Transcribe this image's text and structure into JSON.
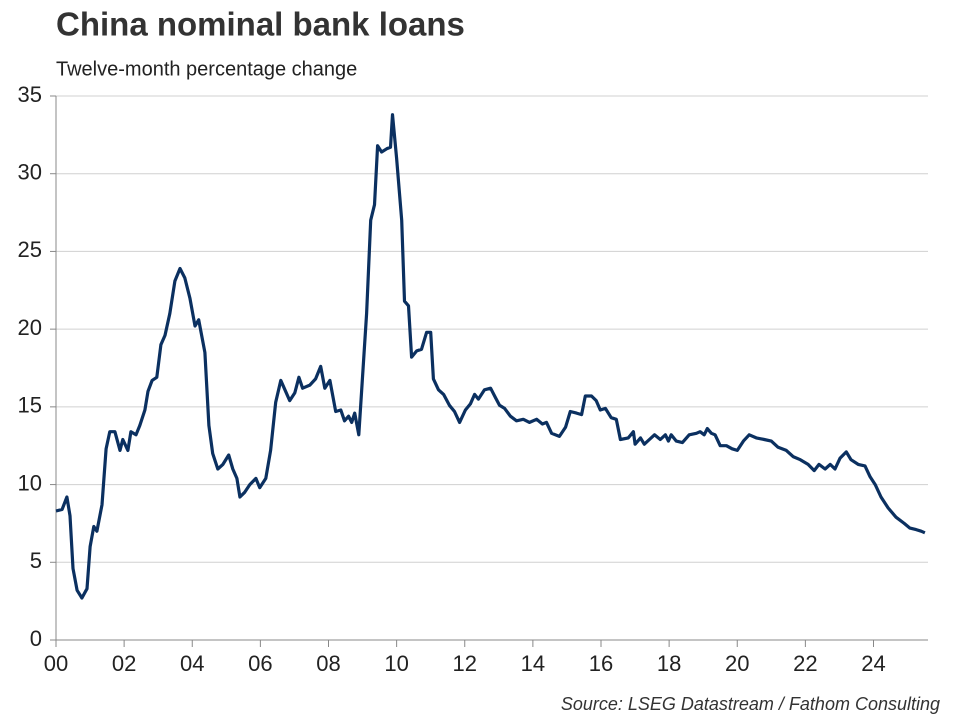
{
  "chart_data": {
    "type": "line",
    "title": "China nominal bank loans",
    "subtitle": "Twelve-month percentage change",
    "source": "Source: LSEG Datastream / Fathom Consulting",
    "color": "#0b3060",
    "grid": true,
    "xlim": [
      2000,
      2025.6
    ],
    "xticks": [
      {
        "value": 2000,
        "label": "00"
      },
      {
        "value": 2002,
        "label": "02"
      },
      {
        "value": 2004,
        "label": "04"
      },
      {
        "value": 2006,
        "label": "06"
      },
      {
        "value": 2008,
        "label": "08"
      },
      {
        "value": 2010,
        "label": "10"
      },
      {
        "value": 2012,
        "label": "12"
      },
      {
        "value": 2014,
        "label": "14"
      },
      {
        "value": 2016,
        "label": "16"
      },
      {
        "value": 2018,
        "label": "18"
      },
      {
        "value": 2020,
        "label": "20"
      },
      {
        "value": 2022,
        "label": "22"
      },
      {
        "value": 2024,
        "label": "24"
      }
    ],
    "ylim": [
      0,
      35
    ],
    "yticks": [
      0,
      5,
      10,
      15,
      20,
      25,
      30,
      35
    ],
    "x": [
      2000.0,
      2000.18,
      2000.32,
      2000.41,
      2000.5,
      2000.62,
      2000.76,
      2000.91,
      2001.0,
      2001.11,
      2001.2,
      2001.35,
      2001.47,
      2001.58,
      2001.73,
      2001.88,
      2001.96,
      2002.11,
      2002.2,
      2002.35,
      2002.46,
      2002.61,
      2002.7,
      2002.82,
      2002.96,
      2003.08,
      2003.2,
      2003.34,
      2003.49,
      2003.64,
      2003.78,
      2003.93,
      2004.08,
      2004.19,
      2004.37,
      2004.49,
      2004.6,
      2004.75,
      2004.9,
      2005.07,
      2005.19,
      2005.31,
      2005.4,
      2005.54,
      2005.69,
      2005.87,
      2005.98,
      2006.16,
      2006.3,
      2006.45,
      2006.6,
      2006.74,
      2006.86,
      2007.01,
      2007.13,
      2007.24,
      2007.45,
      2007.62,
      2007.77,
      2007.89,
      2008.04,
      2008.21,
      2008.36,
      2008.47,
      2008.59,
      2008.68,
      2008.77,
      2008.89,
      2009.0,
      2009.12,
      2009.24,
      2009.35,
      2009.44,
      2009.56,
      2009.71,
      2009.82,
      2009.88,
      2010.0,
      2010.15,
      2010.23,
      2010.35,
      2010.44,
      2010.59,
      2010.73,
      2010.88,
      2011.0,
      2011.08,
      2011.23,
      2011.38,
      2011.55,
      2011.7,
      2011.85,
      2012.02,
      2012.17,
      2012.29,
      2012.4,
      2012.58,
      2012.76,
      2012.9,
      2013.02,
      2013.17,
      2013.34,
      2013.52,
      2013.72,
      2013.9,
      2014.11,
      2014.28,
      2014.4,
      2014.55,
      2014.78,
      2014.96,
      2015.1,
      2015.28,
      2015.43,
      2015.54,
      2015.72,
      2015.86,
      2015.98,
      2016.13,
      2016.3,
      2016.45,
      2016.57,
      2016.8,
      2016.95,
      2017.0,
      2017.16,
      2017.27,
      2017.42,
      2017.57,
      2017.74,
      2017.89,
      2017.98,
      2018.06,
      2018.21,
      2018.39,
      2018.59,
      2018.8,
      2018.91,
      2019.03,
      2019.12,
      2019.24,
      2019.35,
      2019.5,
      2019.68,
      2019.85,
      2020.0,
      2020.18,
      2020.35,
      2020.56,
      2020.79,
      2021.0,
      2021.2,
      2021.44,
      2021.64,
      2021.85,
      2022.08,
      2022.26,
      2022.4,
      2022.58,
      2022.73,
      2022.87,
      2023.02,
      2023.2,
      2023.34,
      2023.55,
      2023.75,
      2023.9,
      2024.05,
      2024.22,
      2024.43,
      2024.66,
      2024.9,
      2025.07,
      2025.25,
      2025.4,
      2025.51
    ],
    "values": [
      8.3,
      8.4,
      9.2,
      8.0,
      4.6,
      3.2,
      2.7,
      3.3,
      6.0,
      7.3,
      7.0,
      8.7,
      12.3,
      13.4,
      13.4,
      12.2,
      12.9,
      12.2,
      13.4,
      13.2,
      13.8,
      14.8,
      16.0,
      16.7,
      16.9,
      19.0,
      19.6,
      21.0,
      23.1,
      23.9,
      23.3,
      22.0,
      20.2,
      20.6,
      18.5,
      13.8,
      12.0,
      11.0,
      11.3,
      11.9,
      11.0,
      10.4,
      9.2,
      9.5,
      10.0,
      10.4,
      9.8,
      10.4,
      12.2,
      15.3,
      16.7,
      16.0,
      15.4,
      15.9,
      16.9,
      16.2,
      16.4,
      16.8,
      17.6,
      16.2,
      16.7,
      14.7,
      14.8,
      14.1,
      14.4,
      14.0,
      14.6,
      13.2,
      17.0,
      21.0,
      27.0,
      28.0,
      31.8,
      31.4,
      31.6,
      31.7,
      33.8,
      31.0,
      27.0,
      21.8,
      21.5,
      18.2,
      18.6,
      18.7,
      19.8,
      19.8,
      16.8,
      16.1,
      15.8,
      15.1,
      14.7,
      14.0,
      14.8,
      15.2,
      15.8,
      15.5,
      16.1,
      16.2,
      15.6,
      15.1,
      14.9,
      14.4,
      14.1,
      14.2,
      14.0,
      14.2,
      13.9,
      14.0,
      13.3,
      13.1,
      13.7,
      14.7,
      14.6,
      14.5,
      15.7,
      15.7,
      15.4,
      14.8,
      14.9,
      14.3,
      14.2,
      12.9,
      13.0,
      13.4,
      12.6,
      13.0,
      12.6,
      12.9,
      13.2,
      12.9,
      13.2,
      12.8,
      13.2,
      12.8,
      12.7,
      13.2,
      13.3,
      13.4,
      13.2,
      13.6,
      13.3,
      13.2,
      12.5,
      12.5,
      12.3,
      12.2,
      12.8,
      13.2,
      13.0,
      12.9,
      12.8,
      12.4,
      12.2,
      11.8,
      11.6,
      11.3,
      10.9,
      11.3,
      11.0,
      11.3,
      11.0,
      11.7,
      12.1,
      11.6,
      11.3,
      11.2,
      10.5,
      10.0,
      9.2,
      8.5,
      7.9,
      7.5,
      7.2,
      7.1,
      7.0,
      6.9
    ]
  }
}
